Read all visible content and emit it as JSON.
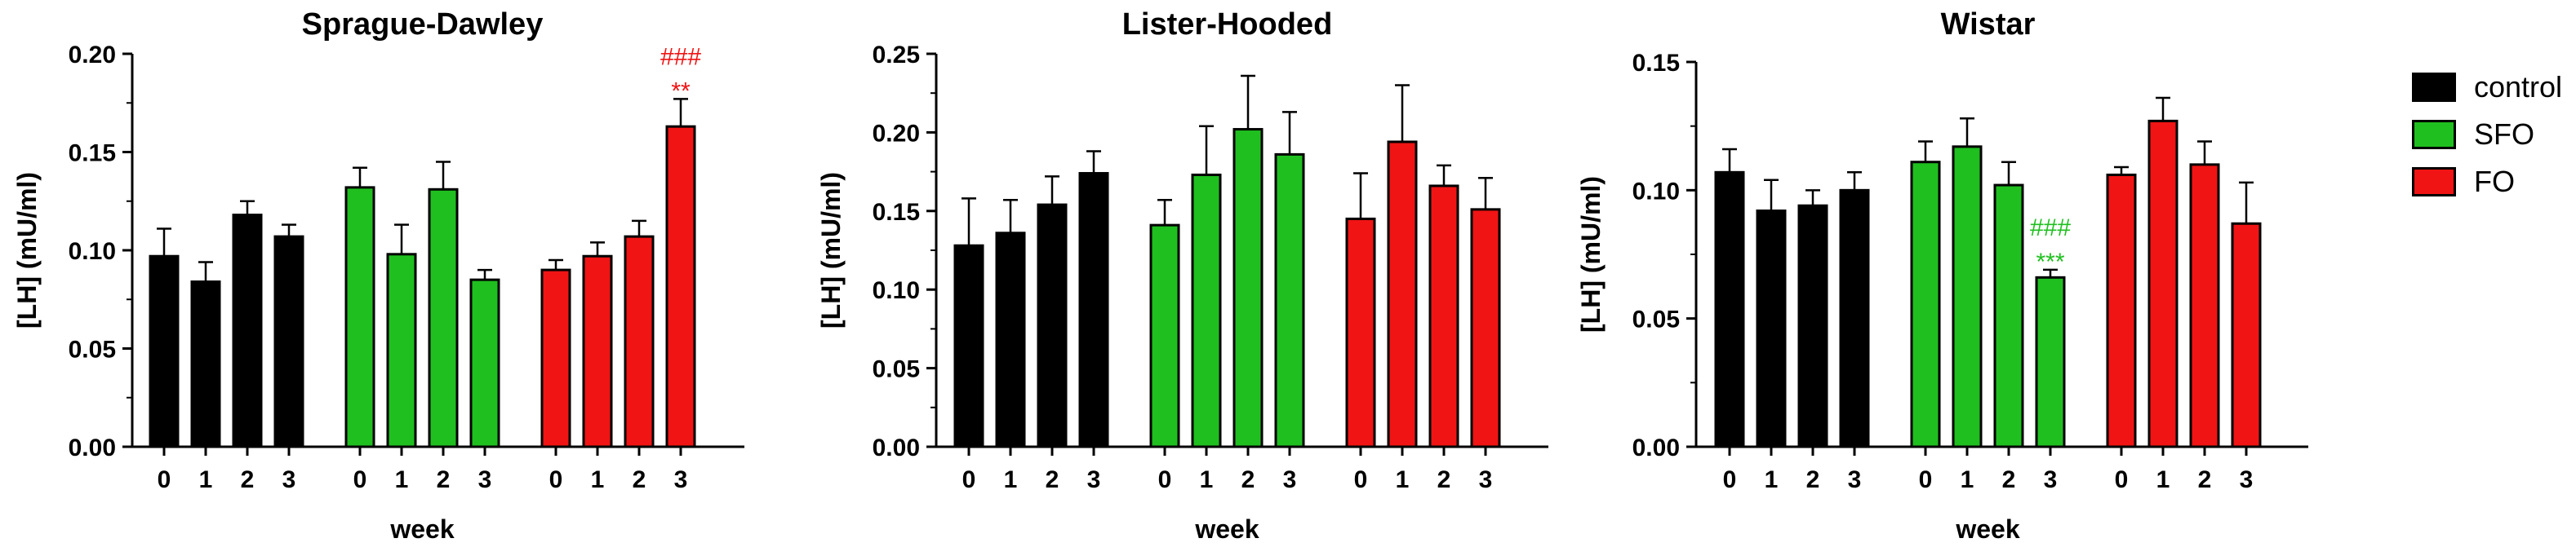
{
  "legend": [
    {
      "label": "control",
      "color": "#000000"
    },
    {
      "label": "SFO",
      "color": "#1fbf1f"
    },
    {
      "label": "FO",
      "color": "#f01414"
    }
  ],
  "chart_data": [
    {
      "type": "bar",
      "title": "Sprague-Dawley",
      "xlabel": "week",
      "ylabel": "[LH] (mU/ml)",
      "ylim": [
        0,
        0.2
      ],
      "yticks": [
        "0.00",
        "0.05",
        "0.10",
        "0.15",
        "0.20"
      ],
      "categories": [
        "0",
        "1",
        "2",
        "3"
      ],
      "series": [
        {
          "group": "control",
          "color": "#000000",
          "values": [
            0.097,
            0.084,
            0.118,
            0.107
          ],
          "errors": [
            0.014,
            0.01,
            0.007,
            0.006
          ]
        },
        {
          "group": "SFO",
          "color": "#1fbf1f",
          "values": [
            0.132,
            0.098,
            0.131,
            0.085
          ],
          "errors": [
            0.01,
            0.015,
            0.014,
            0.005
          ]
        },
        {
          "group": "FO",
          "color": "#f01414",
          "values": [
            0.09,
            0.097,
            0.107,
            0.163
          ],
          "errors": [
            0.005,
            0.007,
            0.008,
            0.014
          ]
        }
      ],
      "annotations": [
        {
          "group": "FO",
          "category": "3",
          "lines": [
            "###",
            "**"
          ],
          "color": "#f01414"
        }
      ]
    },
    {
      "type": "bar",
      "title": "Lister-Hooded",
      "xlabel": "week",
      "ylabel": "[LH] (mU/ml)",
      "ylim": [
        0,
        0.25
      ],
      "yticks": [
        "0.00",
        "0.05",
        "0.10",
        "0.15",
        "0.20",
        "0.25"
      ],
      "categories": [
        "0",
        "1",
        "2",
        "3"
      ],
      "series": [
        {
          "group": "control",
          "color": "#000000",
          "values": [
            0.128,
            0.136,
            0.154,
            0.174
          ],
          "errors": [
            0.03,
            0.021,
            0.018,
            0.014
          ]
        },
        {
          "group": "SFO",
          "color": "#1fbf1f",
          "values": [
            0.141,
            0.173,
            0.202,
            0.186
          ],
          "errors": [
            0.016,
            0.031,
            0.034,
            0.027
          ]
        },
        {
          "group": "FO",
          "color": "#f01414",
          "values": [
            0.145,
            0.194,
            0.166,
            0.151
          ],
          "errors": [
            0.029,
            0.036,
            0.013,
            0.02
          ]
        }
      ],
      "annotations": []
    },
    {
      "type": "bar",
      "title": "Wistar",
      "xlabel": "week",
      "ylabel": "[LH] (mU/ml)",
      "ylim": [
        0,
        0.15
      ],
      "yticks": [
        "0.00",
        "0.05",
        "0.10",
        "0.15"
      ],
      "categories": [
        "0",
        "1",
        "2",
        "3"
      ],
      "series": [
        {
          "group": "control",
          "color": "#000000",
          "values": [
            0.107,
            0.092,
            0.094,
            0.1
          ],
          "errors": [
            0.009,
            0.012,
            0.006,
            0.007
          ]
        },
        {
          "group": "SFO",
          "color": "#1fbf1f",
          "values": [
            0.111,
            0.117,
            0.102,
            0.066
          ],
          "errors": [
            0.008,
            0.011,
            0.009,
            0.003
          ]
        },
        {
          "group": "FO",
          "color": "#f01414",
          "values": [
            0.106,
            0.127,
            0.11,
            0.087
          ],
          "errors": [
            0.003,
            0.009,
            0.009,
            0.016
          ]
        }
      ],
      "annotations": [
        {
          "group": "SFO",
          "category": "3",
          "lines": [
            "###",
            "***"
          ],
          "color": "#1fbf1f"
        }
      ]
    }
  ]
}
